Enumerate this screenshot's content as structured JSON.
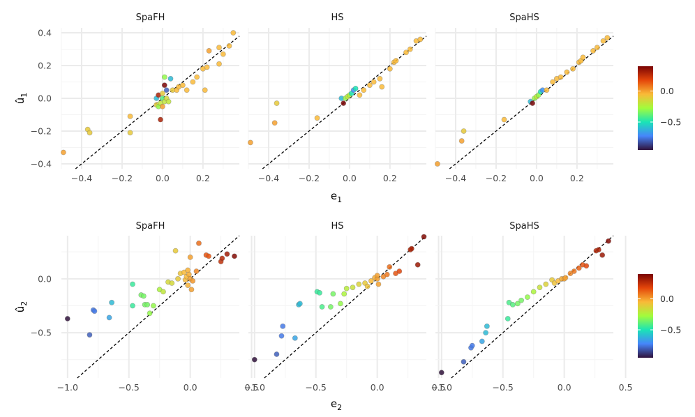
{
  "panel_titles": [
    "SpaFH",
    "HS",
    "SpaHS"
  ],
  "rows": [
    {
      "x_label": "e",
      "x_sub": "1",
      "y_label": "û",
      "y_sub": "1",
      "x_ticks": [
        "−0.4",
        "−0.2",
        "0.0",
        "0.2"
      ],
      "y_ticks": [
        "0.4",
        "0.2",
        "0.0",
        "−0.2",
        "−0.4"
      ],
      "colorbar_ticks": [
        "0.0",
        "−0.5"
      ]
    },
    {
      "x_label": "e",
      "x_sub": "2",
      "y_label": "û",
      "y_sub": "2",
      "x_ticks": [
        "−1.0",
        "−0.5",
        "0.0",
        "0.5"
      ],
      "y_ticks": [
        "0.0",
        "−0.5"
      ],
      "colorbar_ticks": [
        "0.0",
        "−0.5"
      ]
    }
  ],
  "colors": {
    "reference_line": "#000000",
    "point_edge": "#6b6b6b",
    "grid_major": "#ebebeb",
    "grid_minor": "#f4f4f4",
    "colorscale": [
      "#30123b",
      "#4686fb",
      "#1ae4b6",
      "#a2fc3c",
      "#f9ba38",
      "#e4460a",
      "#7a0403"
    ]
  },
  "chart_data": [
    {
      "type": "scatter",
      "facet": "SpaFH",
      "x_label": "e1",
      "y_label": "û1",
      "xlim": [
        -0.5,
        0.38
      ],
      "ylim": [
        -0.43,
        0.43
      ],
      "reference_line": "y = x",
      "color_range": [
        -0.95,
        0.4
      ],
      "points": [
        [
          -0.49,
          -0.33,
          0.0
        ],
        [
          -0.37,
          -0.19,
          -0.1
        ],
        [
          -0.36,
          -0.21,
          -0.1
        ],
        [
          -0.16,
          -0.11,
          -0.05
        ],
        [
          -0.16,
          -0.21,
          -0.1
        ],
        [
          -0.03,
          0.0,
          -0.6
        ],
        [
          -0.03,
          -0.04,
          -0.1
        ],
        [
          -0.02,
          -0.05,
          -0.3
        ],
        [
          -0.02,
          0.02,
          0.3
        ],
        [
          -0.01,
          -0.13,
          0.3
        ],
        [
          -0.01,
          -0.03,
          -0.2
        ],
        [
          0.0,
          0.0,
          -0.4
        ],
        [
          0.0,
          0.03,
          -0.1
        ],
        [
          0.0,
          -0.05,
          0.0
        ],
        [
          0.01,
          0.13,
          -0.3
        ],
        [
          0.01,
          -0.02,
          -0.2
        ],
        [
          0.01,
          0.08,
          0.4
        ],
        [
          0.02,
          0.05,
          -0.8
        ],
        [
          0.02,
          0.0,
          -0.15
        ],
        [
          0.03,
          -0.02,
          -0.2
        ],
        [
          0.04,
          0.12,
          -0.6
        ],
        [
          0.05,
          0.05,
          -0.1
        ],
        [
          0.07,
          0.05,
          -0.05
        ],
        [
          0.08,
          0.07,
          -0.05
        ],
        [
          0.1,
          0.08,
          -0.05
        ],
        [
          0.12,
          0.05,
          -0.05
        ],
        [
          0.15,
          0.1,
          -0.05
        ],
        [
          0.17,
          0.13,
          -0.05
        ],
        [
          0.2,
          0.18,
          -0.05
        ],
        [
          0.21,
          0.05,
          -0.05
        ],
        [
          0.22,
          0.19,
          -0.05
        ],
        [
          0.23,
          0.29,
          0.0
        ],
        [
          0.28,
          0.31,
          -0.05
        ],
        [
          0.28,
          0.21,
          -0.05
        ],
        [
          0.3,
          0.27,
          -0.05
        ],
        [
          0.33,
          0.32,
          -0.05
        ],
        [
          0.35,
          0.4,
          -0.05
        ]
      ]
    },
    {
      "type": "scatter",
      "facet": "HS",
      "x_label": "e1",
      "y_label": "û1",
      "xlim": [
        -0.5,
        0.38
      ],
      "ylim": [
        -0.43,
        0.43
      ],
      "reference_line": "y = x",
      "color_range": [
        -0.95,
        0.4
      ],
      "points": [
        [
          -0.49,
          -0.27,
          0.0
        ],
        [
          -0.37,
          -0.15,
          0.0
        ],
        [
          -0.36,
          -0.03,
          -0.1
        ],
        [
          -0.16,
          -0.12,
          -0.05
        ],
        [
          -0.04,
          0.0,
          -0.6
        ],
        [
          -0.03,
          -0.03,
          0.4
        ],
        [
          -0.02,
          0.0,
          -0.3
        ],
        [
          -0.01,
          0.01,
          -0.2
        ],
        [
          0.0,
          0.02,
          -0.25
        ],
        [
          0.01,
          0.03,
          -0.5
        ],
        [
          0.02,
          0.05,
          -0.7
        ],
        [
          0.03,
          0.06,
          -0.5
        ],
        [
          0.05,
          0.02,
          -0.05
        ],
        [
          0.07,
          0.05,
          -0.05
        ],
        [
          0.1,
          0.08,
          -0.05
        ],
        [
          0.12,
          0.1,
          -0.05
        ],
        [
          0.15,
          0.12,
          -0.05
        ],
        [
          0.16,
          0.07,
          -0.05
        ],
        [
          0.2,
          0.18,
          -0.05
        ],
        [
          0.22,
          0.22,
          -0.05
        ],
        [
          0.23,
          0.23,
          -0.05
        ],
        [
          0.28,
          0.28,
          -0.05
        ],
        [
          0.3,
          0.3,
          -0.05
        ],
        [
          0.33,
          0.35,
          -0.05
        ],
        [
          0.35,
          0.36,
          -0.05
        ]
      ]
    },
    {
      "type": "scatter",
      "facet": "SpaHS",
      "x_label": "e1",
      "y_label": "û1",
      "xlim": [
        -0.5,
        0.38
      ],
      "ylim": [
        -0.43,
        0.43
      ],
      "reference_line": "y = x",
      "color_range": [
        -0.95,
        0.4
      ],
      "points": [
        [
          -0.49,
          -0.4,
          0.0
        ],
        [
          -0.37,
          -0.26,
          0.0
        ],
        [
          -0.36,
          -0.2,
          -0.1
        ],
        [
          -0.16,
          -0.13,
          -0.05
        ],
        [
          -0.03,
          -0.02,
          -0.6
        ],
        [
          -0.02,
          -0.03,
          0.4
        ],
        [
          -0.01,
          0.0,
          -0.3
        ],
        [
          0.0,
          0.01,
          -0.2
        ],
        [
          0.01,
          0.02,
          -0.3
        ],
        [
          0.02,
          0.04,
          -0.5
        ],
        [
          0.03,
          0.05,
          -0.7
        ],
        [
          0.05,
          0.05,
          -0.05
        ],
        [
          0.08,
          0.1,
          -0.05
        ],
        [
          0.1,
          0.12,
          -0.05
        ],
        [
          0.12,
          0.13,
          -0.05
        ],
        [
          0.15,
          0.16,
          -0.05
        ],
        [
          0.18,
          0.18,
          -0.05
        ],
        [
          0.21,
          0.22,
          -0.05
        ],
        [
          0.22,
          0.23,
          -0.05
        ],
        [
          0.23,
          0.25,
          -0.05
        ],
        [
          0.28,
          0.29,
          -0.05
        ],
        [
          0.3,
          0.31,
          -0.05
        ],
        [
          0.33,
          0.35,
          -0.05
        ],
        [
          0.35,
          0.37,
          -0.05
        ]
      ]
    },
    {
      "type": "scatter",
      "facet": "SpaFH",
      "x_label": "e2",
      "y_label": "û2",
      "xlim": [
        -1.05,
        0.4
      ],
      "ylim": [
        -0.92,
        0.4
      ],
      "reference_line": "y = x",
      "color_range": [
        -0.95,
        0.4
      ],
      "points": [
        [
          -1.0,
          -0.37,
          -0.95
        ],
        [
          -0.82,
          -0.52,
          -0.8
        ],
        [
          -0.79,
          -0.29,
          -0.75
        ],
        [
          -0.78,
          -0.3,
          -0.75
        ],
        [
          -0.66,
          -0.36,
          -0.65
        ],
        [
          -0.64,
          -0.22,
          -0.6
        ],
        [
          -0.47,
          -0.05,
          -0.45
        ],
        [
          -0.47,
          -0.25,
          -0.45
        ],
        [
          -0.4,
          -0.15,
          -0.35
        ],
        [
          -0.38,
          -0.16,
          -0.35
        ],
        [
          -0.37,
          -0.24,
          -0.35
        ],
        [
          -0.35,
          -0.24,
          -0.35
        ],
        [
          -0.33,
          -0.32,
          -0.3
        ],
        [
          -0.3,
          -0.25,
          -0.3
        ],
        [
          -0.25,
          -0.1,
          -0.25
        ],
        [
          -0.22,
          -0.12,
          -0.2
        ],
        [
          -0.18,
          -0.03,
          -0.15
        ],
        [
          -0.15,
          -0.04,
          -0.15
        ],
        [
          -0.12,
          0.26,
          -0.1
        ],
        [
          -0.1,
          0.0,
          -0.1
        ],
        [
          -0.08,
          0.05,
          -0.08
        ],
        [
          -0.05,
          0.06,
          -0.05
        ],
        [
          -0.04,
          -0.01,
          -0.05
        ],
        [
          -0.03,
          0.02,
          -0.05
        ],
        [
          -0.02,
          0.08,
          -0.03
        ],
        [
          -0.02,
          -0.06,
          -0.03
        ],
        [
          -0.01,
          0.04,
          -0.02
        ],
        [
          0.0,
          0.0,
          0.0
        ],
        [
          0.0,
          0.2,
          0.0
        ],
        [
          0.01,
          -0.1,
          0.0
        ],
        [
          0.02,
          -0.02,
          0.02
        ],
        [
          0.05,
          0.07,
          0.05
        ],
        [
          0.07,
          0.33,
          0.1
        ],
        [
          0.13,
          0.22,
          0.15
        ],
        [
          0.15,
          0.21,
          0.15
        ],
        [
          0.25,
          0.16,
          0.25
        ],
        [
          0.26,
          0.19,
          0.28
        ],
        [
          0.3,
          0.23,
          0.32
        ],
        [
          0.36,
          0.21,
          0.38
        ]
      ]
    },
    {
      "type": "scatter",
      "facet": "HS",
      "x_label": "e2",
      "y_label": "û2",
      "xlim": [
        -1.05,
        0.4
      ],
      "ylim": [
        -0.92,
        0.4
      ],
      "reference_line": "y = x",
      "color_range": [
        -0.95,
        0.4
      ],
      "points": [
        [
          -1.0,
          -0.75,
          -0.95
        ],
        [
          -0.82,
          -0.7,
          -0.8
        ],
        [
          -0.78,
          -0.53,
          -0.75
        ],
        [
          -0.77,
          -0.44,
          -0.75
        ],
        [
          -0.67,
          -0.55,
          -0.65
        ],
        [
          -0.64,
          -0.24,
          -0.6
        ],
        [
          -0.63,
          -0.23,
          -0.6
        ],
        [
          -0.49,
          -0.12,
          -0.45
        ],
        [
          -0.47,
          -0.13,
          -0.45
        ],
        [
          -0.45,
          -0.26,
          -0.42
        ],
        [
          -0.38,
          -0.26,
          -0.35
        ],
        [
          -0.36,
          -0.14,
          -0.35
        ],
        [
          -0.3,
          -0.23,
          -0.3
        ],
        [
          -0.27,
          -0.14,
          -0.25
        ],
        [
          -0.25,
          -0.09,
          -0.22
        ],
        [
          -0.2,
          -0.08,
          -0.18
        ],
        [
          -0.15,
          -0.05,
          -0.13
        ],
        [
          -0.1,
          -0.04,
          -0.1
        ],
        [
          -0.08,
          -0.07,
          -0.08
        ],
        [
          -0.05,
          -0.02,
          -0.05
        ],
        [
          -0.02,
          0.01,
          -0.02
        ],
        [
          0.0,
          0.0,
          0.0
        ],
        [
          0.0,
          0.03,
          0.0
        ],
        [
          0.01,
          -0.05,
          0.0
        ],
        [
          0.05,
          0.02,
          0.05
        ],
        [
          0.08,
          0.04,
          0.08
        ],
        [
          0.1,
          0.11,
          0.1
        ],
        [
          0.15,
          0.05,
          0.15
        ],
        [
          0.18,
          0.07,
          0.18
        ],
        [
          0.27,
          0.27,
          0.28
        ],
        [
          0.28,
          0.28,
          0.3
        ],
        [
          0.33,
          0.13,
          0.33
        ],
        [
          0.38,
          0.39,
          0.38
        ]
      ]
    },
    {
      "type": "scatter",
      "facet": "SpaHS",
      "x_label": "e2",
      "y_label": "û2",
      "xlim": [
        -1.05,
        0.4
      ],
      "ylim": [
        -0.92,
        0.4
      ],
      "reference_line": "y = x",
      "color_range": [
        -0.95,
        0.4
      ],
      "points": [
        [
          -1.0,
          -0.87,
          -0.95
        ],
        [
          -0.82,
          -0.77,
          -0.8
        ],
        [
          -0.76,
          -0.64,
          -0.75
        ],
        [
          -0.75,
          -0.62,
          -0.75
        ],
        [
          -0.67,
          -0.58,
          -0.65
        ],
        [
          -0.64,
          -0.5,
          -0.6
        ],
        [
          -0.63,
          -0.44,
          -0.6
        ],
        [
          -0.46,
          -0.37,
          -0.45
        ],
        [
          -0.45,
          -0.22,
          -0.42
        ],
        [
          -0.42,
          -0.24,
          -0.4
        ],
        [
          -0.38,
          -0.23,
          -0.35
        ],
        [
          -0.35,
          -0.2,
          -0.35
        ],
        [
          -0.3,
          -0.17,
          -0.3
        ],
        [
          -0.25,
          -0.12,
          -0.25
        ],
        [
          -0.2,
          -0.08,
          -0.18
        ],
        [
          -0.15,
          -0.05,
          -0.13
        ],
        [
          -0.1,
          -0.01,
          -0.1
        ],
        [
          -0.08,
          -0.04,
          -0.08
        ],
        [
          -0.05,
          -0.02,
          -0.05
        ],
        [
          -0.02,
          0.0,
          -0.02
        ],
        [
          0.0,
          0.0,
          0.0
        ],
        [
          0.01,
          0.01,
          0.0
        ],
        [
          0.05,
          0.05,
          0.05
        ],
        [
          0.08,
          0.07,
          0.08
        ],
        [
          0.12,
          0.1,
          0.12
        ],
        [
          0.15,
          0.13,
          0.15
        ],
        [
          0.18,
          0.12,
          0.18
        ],
        [
          0.26,
          0.26,
          0.28
        ],
        [
          0.28,
          0.27,
          0.3
        ],
        [
          0.31,
          0.22,
          0.33
        ],
        [
          0.36,
          0.35,
          0.38
        ]
      ]
    }
  ]
}
